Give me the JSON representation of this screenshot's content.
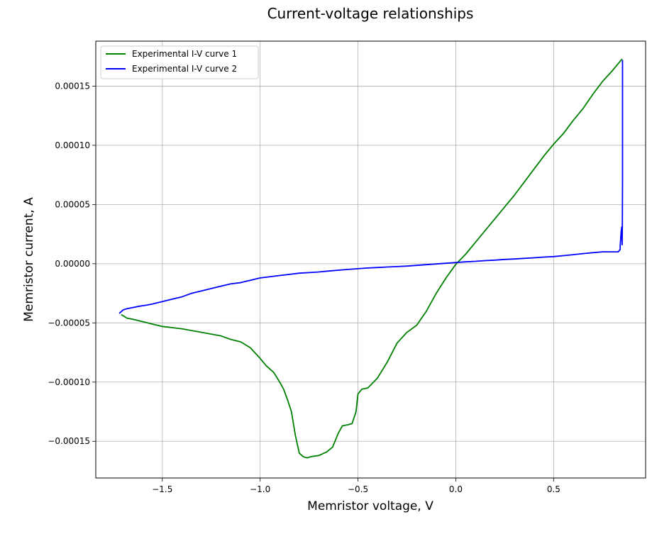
{
  "chart_data": {
    "type": "line",
    "title": "Current-voltage relationships",
    "xlabel": "Memristor voltage, V",
    "ylabel": "Memristor current, A",
    "xlim": [
      -1.84,
      0.97
    ],
    "ylim": [
      -0.000181,
      0.000188
    ],
    "grid": true,
    "legend_position": "top-left",
    "x_ticks": [
      -1.5,
      -1.0,
      -0.5,
      0.0,
      0.5
    ],
    "x_tick_labels": [
      "−1.5",
      "−1.0",
      "−0.5",
      "0.0",
      "0.5"
    ],
    "y_ticks": [
      -0.00015,
      -0.0001,
      -5e-05,
      0.0,
      5e-05,
      0.0001,
      0.00015
    ],
    "y_tick_labels": [
      "−0.00015",
      "−0.00010",
      "−0.00005",
      "0.00000",
      "0.00005",
      "0.00010",
      "0.00015"
    ],
    "series": [
      {
        "name": "Experimental I-V curve 1",
        "color": "#008000",
        "x": [
          -1.71,
          -1.68,
          -1.65,
          -1.6,
          -1.55,
          -1.5,
          -1.4,
          -1.3,
          -1.2,
          -1.15,
          -1.1,
          -1.05,
          -1.0,
          -0.97,
          -0.93,
          -0.9,
          -0.88,
          -0.86,
          -0.84,
          -0.82,
          -0.8,
          -0.78,
          -0.76,
          -0.74,
          -0.7,
          -0.66,
          -0.63,
          -0.6,
          -0.58,
          -0.55,
          -0.53,
          -0.51,
          -0.5,
          -0.48,
          -0.45,
          -0.4,
          -0.35,
          -0.3,
          -0.25,
          -0.2,
          -0.15,
          -0.1,
          -0.05,
          0.0,
          0.05,
          0.1,
          0.15,
          0.2,
          0.25,
          0.3,
          0.35,
          0.4,
          0.45,
          0.5,
          0.55,
          0.6,
          0.65,
          0.7,
          0.75,
          0.8,
          0.85
        ],
        "y": [
          -4.3e-05,
          -4.6e-05,
          -4.7e-05,
          -4.9e-05,
          -5.1e-05,
          -5.3e-05,
          -5.5e-05,
          -5.8e-05,
          -6.1e-05,
          -6.4e-05,
          -6.6e-05,
          -7.1e-05,
          -8e-05,
          -8.6e-05,
          -9.2e-05,
          -0.0001,
          -0.000106,
          -0.000115,
          -0.000125,
          -0.000145,
          -0.00016,
          -0.000163,
          -0.000164,
          -0.000163,
          -0.000162,
          -0.000159,
          -0.000155,
          -0.000143,
          -0.000137,
          -0.000136,
          -0.000135,
          -0.000125,
          -0.00011,
          -0.000106,
          -0.000105,
          -9.65e-05,
          -8.3e-05,
          -6.7e-05,
          -5.8e-05,
          -5.2e-05,
          -4e-05,
          -2.5e-05,
          -1.2e-05,
          -5e-07,
          8e-06,
          1.8e-05,
          2.8e-05,
          3.8e-05,
          4.8e-05,
          5.8e-05,
          6.9e-05,
          8e-05,
          9.1e-05,
          0.000101,
          0.00011,
          0.000121,
          0.000131,
          0.000143,
          0.000154,
          0.000163,
          0.000173
        ]
      },
      {
        "name": "Experimental I-V curve 2",
        "color": "#0000ff",
        "x": [
          -1.72,
          -1.7,
          -1.68,
          -1.65,
          -1.62,
          -1.58,
          -1.55,
          -1.5,
          -1.45,
          -1.4,
          -1.35,
          -1.3,
          -1.25,
          -1.2,
          -1.15,
          -1.1,
          -1.05,
          -1.0,
          -0.95,
          -0.9,
          -0.85,
          -0.8,
          -0.75,
          -0.7,
          -0.65,
          -0.6,
          -0.55,
          -0.5,
          -0.45,
          -0.4,
          -0.35,
          -0.3,
          -0.25,
          -0.2,
          -0.15,
          -0.1,
          -0.05,
          0.0,
          0.05,
          0.1,
          0.15,
          0.2,
          0.25,
          0.3,
          0.35,
          0.4,
          0.45,
          0.5,
          0.55,
          0.6,
          0.65,
          0.7,
          0.75,
          0.8,
          0.83,
          0.84,
          0.84,
          0.845,
          0.848,
          0.85,
          0.851,
          0.852,
          0.852,
          0.852
        ],
        "y": [
          -4.2e-05,
          -3.9e-05,
          -3.8e-05,
          -3.7e-05,
          -3.6e-05,
          -3.5e-05,
          -3.4e-05,
          -3.2e-05,
          -3e-05,
          -2.8e-05,
          -2.5e-05,
          -2.3e-05,
          -2.1e-05,
          -1.9e-05,
          -1.7e-05,
          -1.6e-05,
          -1.4e-05,
          -1.2e-05,
          -1.1e-05,
          -1e-05,
          -9e-06,
          -8e-06,
          -7.5e-06,
          -7e-06,
          -6.2e-06,
          -5.5e-06,
          -4.8e-06,
          -4.2e-06,
          -3.6e-06,
          -3.2e-06,
          -2.8e-06,
          -2.4e-06,
          -2e-06,
          -1.4e-06,
          -8e-07,
          -2e-07,
          4e-07,
          1e-06,
          1.6e-06,
          2e-06,
          2.6e-06,
          3e-06,
          3.6e-06,
          4e-06,
          4.5e-06,
          5e-06,
          5.6e-06,
          6e-06,
          6.8e-06,
          7.6e-06,
          8.5e-06,
          9.3e-06,
          1e-05,
          1e-05,
          1e-05,
          1.2e-05,
          1.5e-05,
          2.7e-05,
          3.1e-05,
          1.6e-05,
          3e-05,
          7e-05,
          0.00012,
          0.000172
        ]
      }
    ]
  }
}
